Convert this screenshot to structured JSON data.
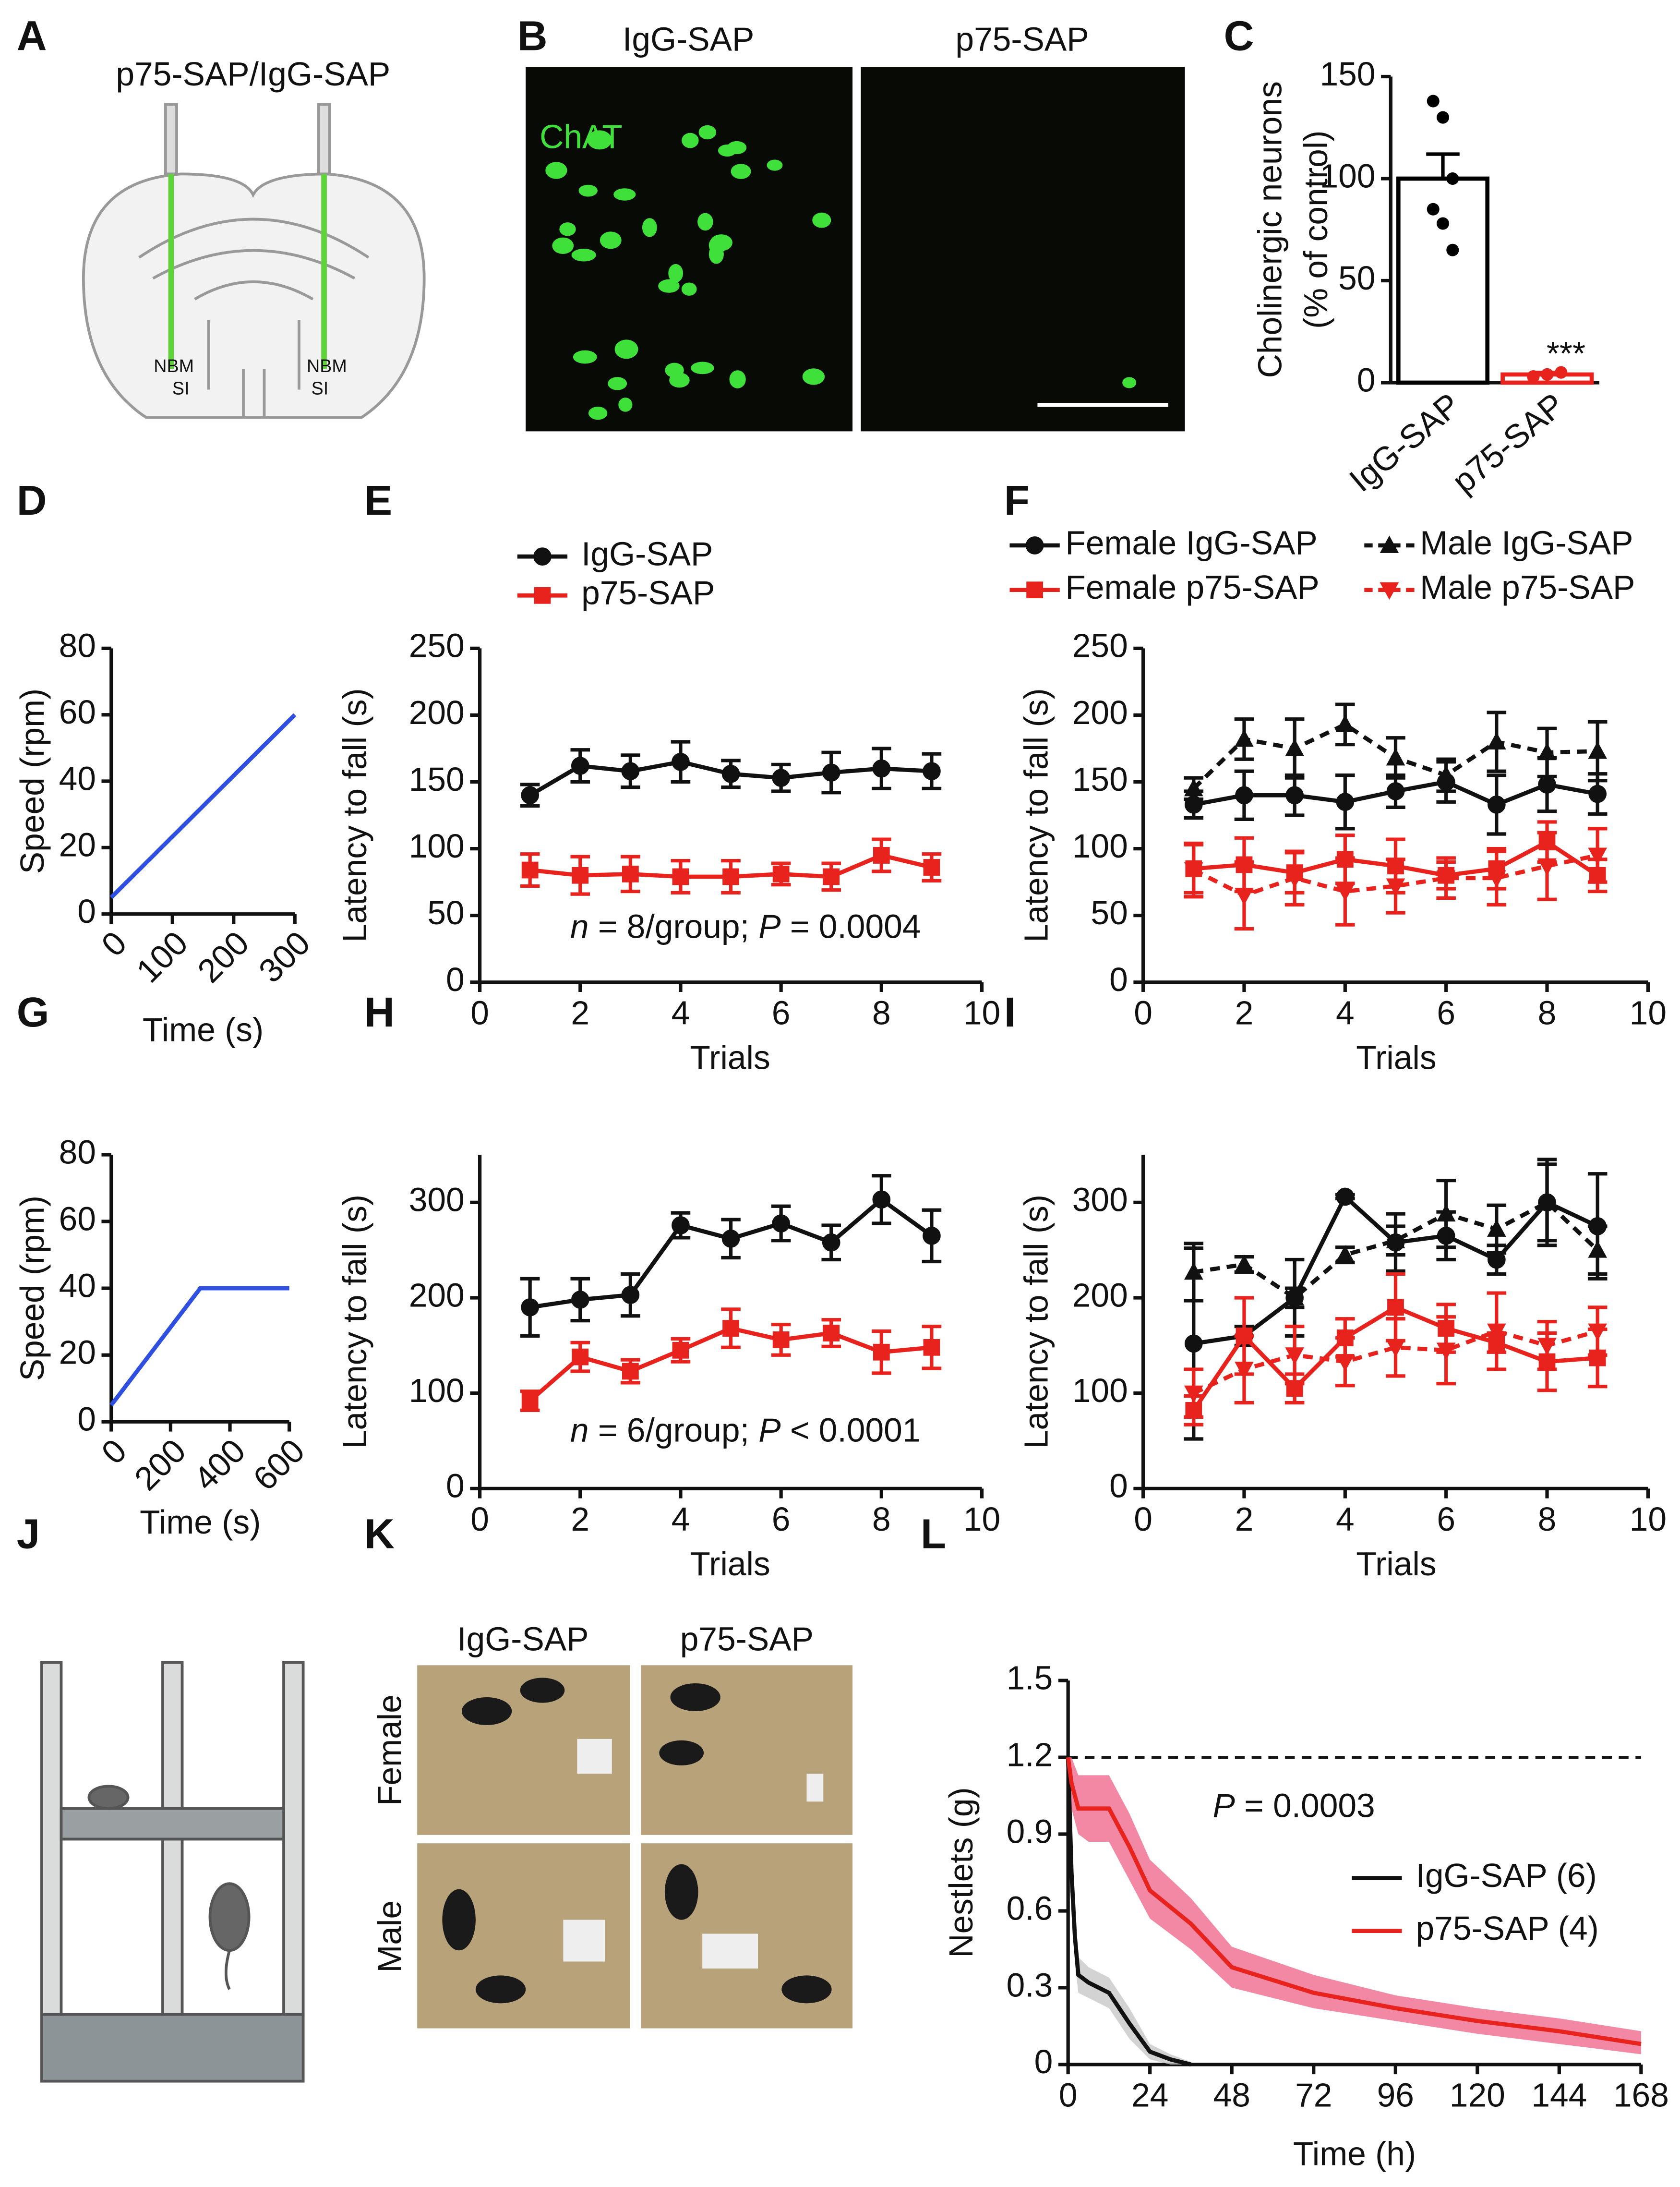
{
  "panel_letters": [
    "A",
    "B",
    "C",
    "D",
    "E",
    "F",
    "G",
    "H",
    "I",
    "J",
    "K",
    "L"
  ],
  "diagram_a": {
    "title": "p75-SAP/IgG-SAP",
    "regions": [
      "NBM",
      "SI"
    ]
  },
  "micrograph_b": {
    "columns": [
      "IgG-SAP",
      "p75-SAP"
    ],
    "stain": "ChAT"
  },
  "photos_k": {
    "columns": [
      "IgG-SAP",
      "p75-SAP"
    ],
    "rows": [
      "Female",
      "Male"
    ]
  },
  "chart_data": [
    {
      "type": "bar",
      "ylabel": [
        "Cholinergic neurons",
        "(% of control)"
      ],
      "categories": [
        "IgG-SAP",
        "p75-SAP"
      ],
      "values": [
        100,
        4
      ],
      "errors": [
        12,
        1
      ],
      "points": [
        [
          138,
          130,
          100,
          85,
          78,
          65
        ],
        [
          3,
          4,
          5,
          3,
          4
        ]
      ],
      "colors": [
        "#000000",
        "#e8221c"
      ],
      "ylim": [
        0,
        150
      ],
      "yticks": [
        0,
        50,
        100,
        150
      ],
      "xtick_rotation": 40,
      "annotation": [
        "***"
      ]
    },
    {
      "type": "line",
      "xlabel": "Time (s)",
      "ylabel": "Speed (rpm)",
      "xlim": [
        0,
        300
      ],
      "xticks": [
        0,
        100,
        200,
        300
      ],
      "ylim": [
        0,
        80
      ],
      "yticks": [
        0,
        20,
        40,
        60,
        80
      ],
      "xtick_rotation": 45,
      "series": [
        {
          "color": "#2f4fe0",
          "x": [
            0,
            300
          ],
          "values": [
            5,
            60
          ]
        }
      ]
    },
    {
      "type": "line",
      "xlabel": "Trials",
      "ylabel": "Latency to fall (s)",
      "xlim": [
        0,
        10
      ],
      "xticks": [
        0,
        2,
        4,
        6,
        8,
        10
      ],
      "ylim": [
        0,
        250
      ],
      "yticks": [
        0,
        50,
        100,
        150,
        200,
        250
      ],
      "annotation": [
        "n",
        " = 8/group; ",
        "P",
        " = 0.0004"
      ],
      "series": [
        {
          "name": "IgG-SAP",
          "color": "#111111",
          "marker": "circle",
          "x": [
            1,
            2,
            3,
            4,
            5,
            6,
            7,
            8,
            9
          ],
          "values": [
            140,
            162,
            158,
            165,
            156,
            153,
            157,
            160,
            158
          ],
          "errors": [
            8,
            12,
            12,
            15,
            10,
            10,
            15,
            15,
            13
          ]
        },
        {
          "name": "p75-SAP",
          "color": "#e8221c",
          "marker": "square",
          "x": [
            1,
            2,
            3,
            4,
            5,
            6,
            7,
            8,
            9
          ],
          "values": [
            84,
            80,
            81,
            79,
            79,
            81,
            79,
            95,
            86
          ],
          "errors": [
            12,
            14,
            13,
            12,
            12,
            8,
            10,
            12,
            10
          ]
        }
      ]
    },
    {
      "type": "line",
      "xlabel": "Trials",
      "ylabel": "Latency to fall (s)",
      "xlim": [
        0,
        10
      ],
      "xticks": [
        0,
        2,
        4,
        6,
        8,
        10
      ],
      "ylim": [
        0,
        250
      ],
      "yticks": [
        0,
        50,
        100,
        150,
        200,
        250
      ],
      "series": [
        {
          "name": "Female IgG-SAP",
          "color": "#111111",
          "marker": "circle",
          "x": [
            1,
            2,
            3,
            4,
            5,
            6,
            7,
            8,
            9
          ],
          "values": [
            133,
            140,
            140,
            135,
            143,
            150,
            133,
            148,
            141
          ],
          "errors": [
            10,
            18,
            15,
            20,
            12,
            15,
            22,
            20,
            15
          ]
        },
        {
          "name": "Male IgG-SAP",
          "color": "#111111",
          "marker": "triangle",
          "dashed": true,
          "x": [
            1,
            2,
            3,
            4,
            5,
            6,
            7,
            8,
            9
          ],
          "values": [
            145,
            182,
            175,
            193,
            168,
            155,
            180,
            172,
            173
          ],
          "errors": [
            8,
            15,
            22,
            15,
            15,
            12,
            22,
            18,
            22
          ]
        },
        {
          "name": "Female p75-SAP",
          "color": "#e8221c",
          "marker": "square",
          "x": [
            1,
            2,
            3,
            4,
            5,
            6,
            7,
            8,
            9
          ],
          "values": [
            85,
            88,
            82,
            92,
            87,
            80,
            85,
            105,
            80
          ],
          "errors": [
            18,
            20,
            15,
            18,
            20,
            10,
            15,
            15,
            12
          ]
        },
        {
          "name": "Male p75-SAP",
          "color": "#e8221c",
          "marker": "triangle-down",
          "dashed": true,
          "x": [
            1,
            2,
            3,
            4,
            5,
            6,
            7,
            8,
            9
          ],
          "values": [
            84,
            65,
            78,
            68,
            72,
            78,
            78,
            87,
            95
          ],
          "errors": [
            20,
            25,
            20,
            25,
            20,
            15,
            20,
            25,
            20
          ]
        }
      ]
    },
    {
      "type": "line",
      "xlabel": "Time (s)",
      "ylabel": "Speed (rpm)",
      "xlim": [
        0,
        600
      ],
      "xticks": [
        0,
        200,
        400,
        600
      ],
      "ylim": [
        0,
        80
      ],
      "yticks": [
        0,
        20,
        40,
        60,
        80
      ],
      "xtick_rotation": 45,
      "series": [
        {
          "color": "#2f4fe0",
          "x": [
            0,
            300,
            600
          ],
          "values": [
            5,
            40,
            40
          ]
        }
      ]
    },
    {
      "type": "line",
      "xlabel": "Trials",
      "ylabel": "Latency to fall (s)",
      "xlim": [
        0,
        10
      ],
      "xticks": [
        0,
        2,
        4,
        6,
        8,
        10
      ],
      "ylim": [
        0,
        350
      ],
      "yticks": [
        0,
        100,
        200,
        300
      ],
      "annotation": [
        "n",
        " = 6/group; ",
        "P",
        " < 0.0001"
      ],
      "series": [
        {
          "name": "IgG-SAP",
          "color": "#111111",
          "marker": "circle",
          "x": [
            1,
            2,
            3,
            4,
            5,
            6,
            7,
            8,
            9
          ],
          "values": [
            190,
            198,
            203,
            276,
            262,
            278,
            258,
            303,
            265
          ],
          "errors": [
            30,
            22,
            22,
            13,
            20,
            18,
            18,
            25,
            27
          ]
        },
        {
          "name": "p75-SAP",
          "color": "#e8221c",
          "marker": "square",
          "x": [
            1,
            2,
            3,
            4,
            5,
            6,
            7,
            8,
            9
          ],
          "values": [
            92,
            138,
            123,
            145,
            168,
            156,
            163,
            143,
            148
          ],
          "errors": [
            10,
            15,
            12,
            12,
            20,
            16,
            14,
            22,
            22
          ]
        }
      ]
    },
    {
      "type": "line",
      "xlabel": "Trials",
      "ylabel": "Latency to fall (s)",
      "xlim": [
        0,
        10
      ],
      "xticks": [
        0,
        2,
        4,
        6,
        8,
        10
      ],
      "ylim": [
        0,
        350
      ],
      "yticks": [
        0,
        100,
        200,
        300
      ],
      "series": [
        {
          "name": "Female IgG-SAP",
          "color": "#111111",
          "marker": "circle",
          "x": [
            1,
            2,
            3,
            4,
            5,
            6,
            7,
            8,
            9
          ],
          "values": [
            152,
            160,
            200,
            306,
            258,
            265,
            240,
            300,
            275
          ],
          "errors": [
            100,
            10,
            40,
            2,
            30,
            25,
            15,
            45,
            55
          ]
        },
        {
          "name": "Male IgG-SAP",
          "color": "#111111",
          "marker": "triangle",
          "dashed": true,
          "x": [
            1,
            2,
            3,
            4,
            5,
            6,
            7,
            8,
            9
          ],
          "values": [
            227,
            235,
            200,
            245,
            260,
            288,
            272,
            300,
            250
          ],
          "errors": [
            30,
            8,
            10,
            8,
            15,
            35,
            25,
            40,
            25
          ]
        },
        {
          "name": "Female p75-SAP",
          "color": "#e8221c",
          "marker": "square",
          "x": [
            1,
            2,
            3,
            4,
            5,
            6,
            7,
            8,
            9
          ],
          "values": [
            82,
            160,
            105,
            158,
            190,
            168,
            153,
            133,
            137
          ],
          "errors": [
            15,
            40,
            15,
            20,
            35,
            25,
            10,
            30,
            30
          ]
        },
        {
          "name": "Male p75-SAP",
          "color": "#e8221c",
          "marker": "triangle-down",
          "dashed": true,
          "x": [
            1,
            2,
            3,
            4,
            5,
            6,
            7,
            8,
            9
          ],
          "values": [
            100,
            125,
            140,
            133,
            148,
            145,
            165,
            150,
            165
          ],
          "errors": [
            25,
            35,
            30,
            25,
            30,
            35,
            40,
            25,
            25
          ]
        }
      ]
    },
    {
      "type": "line",
      "xlabel": "Time (h)",
      "ylabel": "Nestlets (g)",
      "xlim": [
        0,
        168
      ],
      "xticks": [
        0,
        24,
        48,
        72,
        96,
        120,
        144,
        168
      ],
      "ylim": [
        0,
        1.5
      ],
      "yticks": [
        0,
        0.3,
        0.6,
        0.9,
        1.2,
        1.5
      ],
      "hline": 1.2,
      "annotation": [
        "P",
        " = 0.0003"
      ],
      "series": [
        {
          "name": "IgG-SAP (6)",
          "color": "#111111",
          "band_color": "#c8c8c8",
          "x": [
            0,
            1,
            2,
            3,
            6,
            12,
            18,
            24,
            30,
            36
          ],
          "values": [
            1.2,
            0.75,
            0.5,
            0.35,
            0.32,
            0.28,
            0.16,
            0.05,
            0.02,
            0
          ],
          "lower": [
            1.2,
            0.65,
            0.4,
            0.28,
            0.26,
            0.22,
            0.1,
            0.02,
            0,
            0
          ],
          "upper": [
            1.2,
            0.85,
            0.6,
            0.42,
            0.38,
            0.34,
            0.22,
            0.08,
            0.04,
            0.01
          ]
        },
        {
          "name": "p75-SAP (4)",
          "color": "#e8221c",
          "band_color": "#f06a8e",
          "x": [
            0,
            1,
            3,
            6,
            12,
            18,
            24,
            36,
            48,
            72,
            96,
            120,
            144,
            168
          ],
          "values": [
            1.2,
            1.1,
            1.0,
            1.0,
            1.0,
            0.85,
            0.68,
            0.55,
            0.38,
            0.28,
            0.22,
            0.17,
            0.13,
            0.08
          ],
          "lower": [
            1.2,
            1.0,
            0.9,
            0.87,
            0.87,
            0.72,
            0.57,
            0.45,
            0.3,
            0.22,
            0.17,
            0.12,
            0.08,
            0.04
          ],
          "upper": [
            1.2,
            1.2,
            1.13,
            1.13,
            1.13,
            0.98,
            0.8,
            0.65,
            0.46,
            0.35,
            0.27,
            0.22,
            0.18,
            0.13
          ]
        }
      ]
    }
  ]
}
